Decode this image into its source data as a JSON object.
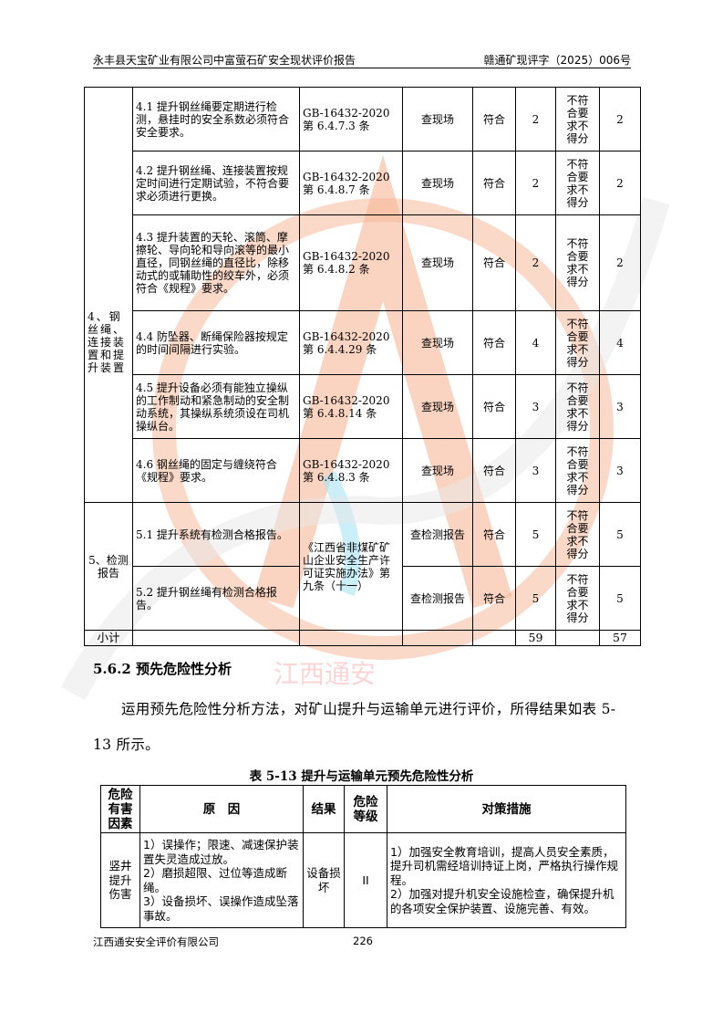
{
  "header": {
    "left": "永丰县天宝矿业有限公司中富萤石矿安全现状评价报告",
    "right": "赣通矿现评字（2025）006号"
  },
  "table1": {
    "rows": [
      {
        "item": "4.1 提升钢丝绳要定期进行检测，悬挂时的安全系数必须符合安全要求。",
        "basis": "GB-16432-2020 第 6.4.7.3 条",
        "method": "查现场",
        "result": "符合",
        "score": "2",
        "rule": "不符合要求不得分",
        "got": "2"
      },
      {
        "item": "4.2 提升钢丝绳、连接装置按规定时间进行定期试验，不符合要求必须进行更换。",
        "basis": "GB-16432-2020 第 6.4.8.7 条",
        "method": "查现场",
        "result": "符合",
        "score": "2",
        "rule": "不符合要求不得分",
        "got": "2"
      },
      {
        "item": "4.3 提升装置的天轮、滚筒、摩擦轮、导向轮和导向滚等的最小直径，同钢丝绳的直径比，除移动式的或辅助性的绞车外，必须符合《规程》要求。",
        "basis": "GB-16432-2020 第 6.4.8.2 条",
        "method": "查现场",
        "result": "符合",
        "score": "2",
        "rule": "不符合要求不得分",
        "got": "2"
      },
      {
        "item": "4.4 防坠器、断绳保险器按规定的时间间隔进行实验。",
        "basis": "GB-16432-2020 第 6.4.4.29 条",
        "method": "查现场",
        "result": "符合",
        "score": "4",
        "rule": "不符合要求不得分",
        "got": "4"
      },
      {
        "item": "4.5 提升设备必须有能独立操纵的工作制动和紧急制动的安全制动系统，其操纵系统须设在司机操纵台。",
        "basis": "GB-16432-2020 第 6.4.8.14 条",
        "method": "查现场",
        "result": "符合",
        "score": "3",
        "rule": "不符合要求不得分",
        "got": "3"
      },
      {
        "item": "4.6 钢丝绳的固定与缠绕符合《规程》要求。",
        "basis": "GB-16432-2020 第 6.4.8.3 条",
        "method": "查现场",
        "result": "符合",
        "score": "3",
        "rule": "不符合要求不得分",
        "got": "3"
      },
      {
        "item": "5.1 提升系统有检测合格报告。",
        "method": "查检测报告",
        "result": "符合",
        "score": "5",
        "rule": "不符合要求不得分",
        "got": "5"
      },
      {
        "item": "5.2 提升钢丝绳有检测合格报告。",
        "method": "查检测报告",
        "result": "符合",
        "score": "5",
        "rule": "不符合要求不得分",
        "got": "5"
      }
    ],
    "cat4": "4、钢丝绳、连接装置和提升装置",
    "cat5": "5、检测报告",
    "basis5": "《江西省非煤矿矿山企业安全生产许可证实施办法》第九条（十一）",
    "subtotal": {
      "label": "小计",
      "score": "59",
      "got": "57"
    }
  },
  "section": {
    "title": "5.6.2 预先危险性分析",
    "para": "运用预先危险性分析方法，对矿山提升与运输单元进行评价，所得结果如表 5-13 所示。"
  },
  "table2": {
    "caption": "表 5-13  提升与运输单元预先危险性分析",
    "headers": [
      "危险有害因素",
      "原　因",
      "结果",
      "危险等级",
      "对策措施"
    ],
    "rows": [
      {
        "factor": "竖井提升伤害",
        "cause": "1）误操作；限速、减速保护装置失灵造成过放。\n2）磨损超限、过位等造成断绳。\n3）设备损坏、误操作造成坠落事故。",
        "result": "设备损坏",
        "level": "II",
        "measures": "1）加强安全教育培训，提高人员安全素质，提升司机需经培训持证上岗，严格执行操作规程。\n2）加强对提升机安全设施检查，确保提升机的各项安全保护装置、设施完善、有效。"
      }
    ]
  },
  "footer": {
    "company": "江西通安安全评价有限公司",
    "page": "226"
  },
  "watermark": {
    "text": "江西通安",
    "arc_text": "江西通安安全评价有限公司",
    "color_circle": "#f5a27a",
    "color_text": "#f08080"
  }
}
